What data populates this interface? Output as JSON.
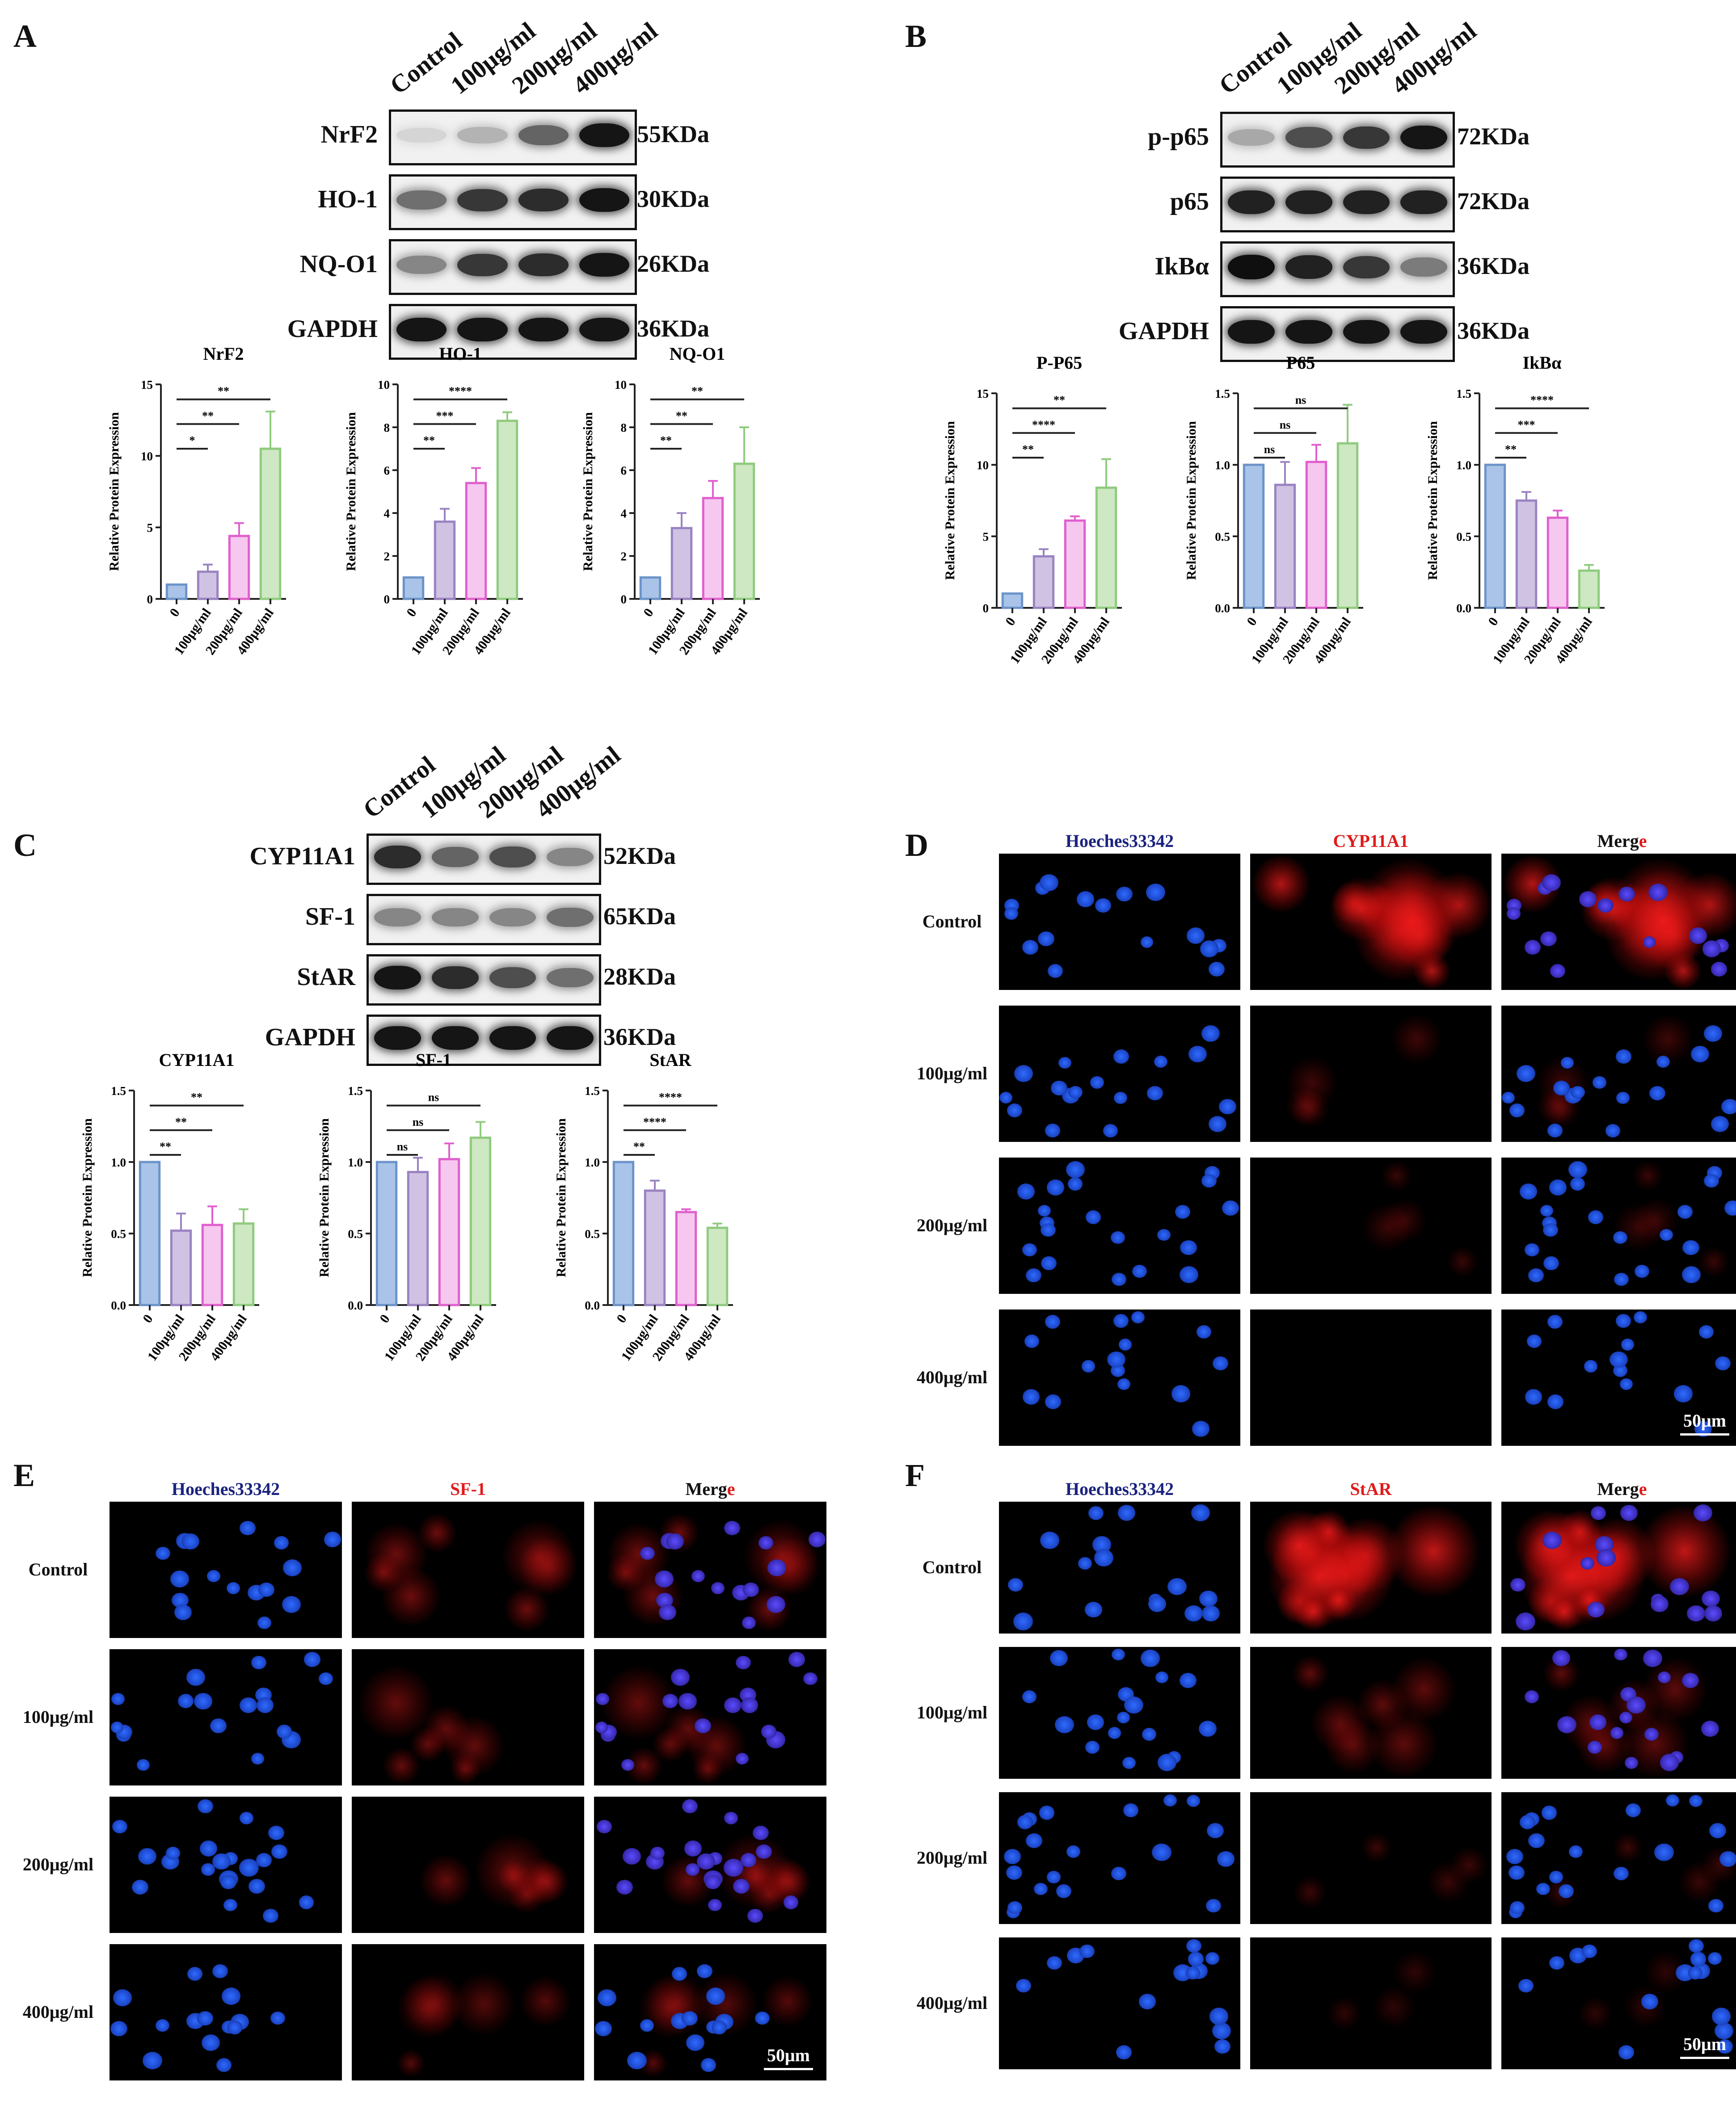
{
  "panels": {
    "A": {
      "letter": "A",
      "lanes": [
        "Control",
        "100μg/ml",
        "200μg/ml",
        "400μg/ml"
      ],
      "blots": [
        {
          "protein": "NrF2",
          "kda": "55KDa",
          "intensity": [
            0.1,
            0.25,
            0.6,
            0.95
          ]
        },
        {
          "protein": "HO-1",
          "kda": "30KDa",
          "intensity": [
            0.55,
            0.8,
            0.85,
            0.95
          ]
        },
        {
          "protein": "NQ-O1",
          "kda": "26KDa",
          "intensity": [
            0.45,
            0.8,
            0.85,
            0.95
          ]
        },
        {
          "protein": "GAPDH",
          "kda": "36KDa",
          "intensity": [
            0.95,
            0.95,
            0.95,
            0.95
          ]
        }
      ]
    },
    "B": {
      "letter": "B",
      "lanes": [
        "Control",
        "100μg/ml",
        "200μg/ml",
        "400μg/ml"
      ],
      "blots": [
        {
          "protein": "p-p65",
          "kda": "72KDa",
          "intensity": [
            0.3,
            0.7,
            0.8,
            0.95
          ]
        },
        {
          "protein": "p65",
          "kda": "72KDa",
          "intensity": [
            0.9,
            0.9,
            0.9,
            0.9
          ]
        },
        {
          "protein": "IkBα",
          "kda": "36KDa",
          "intensity": [
            0.98,
            0.9,
            0.8,
            0.5
          ]
        },
        {
          "protein": "GAPDH",
          "kda": "36KDa",
          "intensity": [
            0.95,
            0.95,
            0.95,
            0.95
          ]
        }
      ]
    },
    "C": {
      "letter": "C",
      "lanes": [
        "Control",
        "100μg/ml",
        "200μg/ml",
        "400μg/ml"
      ],
      "blots": [
        {
          "protein": "CYP11A1",
          "kda": "52KDa",
          "intensity": [
            0.85,
            0.6,
            0.7,
            0.45
          ]
        },
        {
          "protein": "SF-1",
          "kda": "65KDa",
          "intensity": [
            0.45,
            0.45,
            0.45,
            0.55
          ]
        },
        {
          "protein": "StAR",
          "kda": "28KDa",
          "intensity": [
            0.95,
            0.85,
            0.7,
            0.55
          ]
        },
        {
          "protein": "GAPDH",
          "kda": "36KDa",
          "intensity": [
            0.95,
            0.95,
            0.95,
            0.95
          ]
        }
      ]
    },
    "D": {
      "letter": "D",
      "channels": [
        "Hoeches33342",
        "CYP11A1",
        "Merge"
      ],
      "red_level": [
        0.9,
        0.15,
        0.1,
        0.0
      ]
    },
    "E": {
      "letter": "E",
      "channels": [
        "Hoeches33342",
        "SF-1",
        "Merge"
      ],
      "red_level": [
        0.45,
        0.4,
        0.4,
        0.3
      ]
    },
    "F": {
      "letter": "F",
      "channels": [
        "Hoeches33342",
        "StAR",
        "Merge"
      ],
      "red_level": [
        1.0,
        0.35,
        0.12,
        0.05
      ]
    }
  },
  "merge_label": {
    "prefix": "Merg",
    "suffix": "e"
  },
  "doses": [
    "Control",
    "100μg/ml",
    "200μg/ml",
    "400μg/ml"
  ],
  "scale_bar": "50μm",
  "colors": {
    "blue_bar": "#a9c4e8",
    "blue_edge": "#6b93c9",
    "purple_bar": "#cfc2e3",
    "purple_edge": "#9a82c2",
    "pink_bar": "#f6c8ef",
    "pink_edge": "#e05fce",
    "green_bar": "#cde8c3",
    "green_edge": "#8fcb7e",
    "hoechst_label": "#1a237e",
    "red_label": "#e01b1b"
  },
  "chart_data": [
    {
      "type": "bar",
      "title": "NrF2",
      "ylabel": "Relative Protein Expression",
      "categories": [
        "0",
        "100μg/ml",
        "200μg/ml",
        "400μg/ml"
      ],
      "values": [
        1.0,
        1.9,
        4.4,
        10.5
      ],
      "errors": [
        0,
        0.5,
        0.9,
        2.6
      ],
      "ylim": [
        0,
        15
      ],
      "yticks": [
        0,
        5,
        10,
        15
      ],
      "brackets": [
        {
          "to": 1,
          "label": "*"
        },
        {
          "to": 2,
          "label": "**"
        },
        {
          "to": 3,
          "label": "**"
        }
      ]
    },
    {
      "type": "bar",
      "title": "HO-1",
      "ylabel": "Relative Protein Expression",
      "categories": [
        "0",
        "100μg/ml",
        "200μg/ml",
        "400μg/ml"
      ],
      "values": [
        1.0,
        3.6,
        5.4,
        8.3
      ],
      "errors": [
        0,
        0.6,
        0.7,
        0.4
      ],
      "ylim": [
        0,
        10
      ],
      "yticks": [
        0,
        2,
        4,
        6,
        8,
        10
      ],
      "brackets": [
        {
          "to": 1,
          "label": "**"
        },
        {
          "to": 2,
          "label": "***"
        },
        {
          "to": 3,
          "label": "****"
        }
      ]
    },
    {
      "type": "bar",
      "title": "NQ-O1",
      "ylabel": "Relative Protein Expression",
      "categories": [
        "0",
        "100μg/ml",
        "200μg/ml",
        "400μg/ml"
      ],
      "values": [
        1.0,
        3.3,
        4.7,
        6.3
      ],
      "errors": [
        0,
        0.7,
        0.8,
        1.7
      ],
      "ylim": [
        0,
        10
      ],
      "yticks": [
        0,
        2,
        4,
        6,
        8,
        10
      ],
      "brackets": [
        {
          "to": 1,
          "label": "**"
        },
        {
          "to": 2,
          "label": "**"
        },
        {
          "to": 3,
          "label": "**"
        }
      ]
    },
    {
      "type": "bar",
      "title": "P-P65",
      "ylabel": "Relative Protein Expression",
      "categories": [
        "0",
        "100μg/ml",
        "200μg/ml",
        "400μg/ml"
      ],
      "values": [
        1.0,
        3.6,
        6.1,
        8.4
      ],
      "errors": [
        0,
        0.5,
        0.3,
        2.0
      ],
      "ylim": [
        0,
        15
      ],
      "yticks": [
        0,
        5,
        10,
        15
      ],
      "brackets": [
        {
          "to": 1,
          "label": "**"
        },
        {
          "to": 2,
          "label": "****"
        },
        {
          "to": 3,
          "label": "**"
        }
      ]
    },
    {
      "type": "bar",
      "title": "P65",
      "ylabel": "Relative Protein Expression",
      "categories": [
        "0",
        "100μg/ml",
        "200μg/ml",
        "400μg/ml"
      ],
      "values": [
        1.0,
        0.86,
        1.02,
        1.15
      ],
      "errors": [
        0,
        0.16,
        0.12,
        0.27
      ],
      "ylim": [
        0,
        1.5
      ],
      "yticks": [
        0.0,
        0.5,
        1.0,
        1.5
      ],
      "brackets": [
        {
          "to": 1,
          "label": "ns"
        },
        {
          "to": 2,
          "label": "ns"
        },
        {
          "to": 3,
          "label": "ns"
        }
      ]
    },
    {
      "type": "bar",
      "title": "IkBα",
      "ylabel": "Relative Protein Expression",
      "categories": [
        "0",
        "100μg/ml",
        "200μg/ml",
        "400μg/ml"
      ],
      "values": [
        1.0,
        0.75,
        0.63,
        0.26
      ],
      "errors": [
        0,
        0.06,
        0.05,
        0.04
      ],
      "ylim": [
        0,
        1.5
      ],
      "yticks": [
        0.0,
        0.5,
        1.0,
        1.5
      ],
      "brackets": [
        {
          "to": 1,
          "label": "**"
        },
        {
          "to": 2,
          "label": "***"
        },
        {
          "to": 3,
          "label": "****"
        }
      ]
    },
    {
      "type": "bar",
      "title": "CYP11A1",
      "ylabel": "Relative Protein Expression",
      "categories": [
        "0",
        "100μg/ml",
        "200μg/ml",
        "400μg/ml"
      ],
      "values": [
        1.0,
        0.52,
        0.56,
        0.57
      ],
      "errors": [
        0,
        0.12,
        0.13,
        0.1
      ],
      "ylim": [
        0,
        1.5
      ],
      "yticks": [
        0.0,
        0.5,
        1.0,
        1.5
      ],
      "brackets": [
        {
          "to": 1,
          "label": "**"
        },
        {
          "to": 2,
          "label": "**"
        },
        {
          "to": 3,
          "label": "**"
        }
      ]
    },
    {
      "type": "bar",
      "title": "SF-1",
      "ylabel": "Relative Protein Expression",
      "categories": [
        "0",
        "100μg/ml",
        "200μg/ml",
        "400μg/ml"
      ],
      "values": [
        1.0,
        0.93,
        1.02,
        1.17
      ],
      "errors": [
        0,
        0.1,
        0.11,
        0.11
      ],
      "ylim": [
        0,
        1.5
      ],
      "yticks": [
        0.0,
        0.5,
        1.0,
        1.5
      ],
      "brackets": [
        {
          "to": 1,
          "label": "ns"
        },
        {
          "to": 2,
          "label": "ns"
        },
        {
          "to": 3,
          "label": "ns"
        }
      ]
    },
    {
      "type": "bar",
      "title": "StAR",
      "ylabel": "Relative Protein Expression",
      "categories": [
        "0",
        "100μg/ml",
        "200μg/ml",
        "400μg/ml"
      ],
      "values": [
        1.0,
        0.8,
        0.65,
        0.54
      ],
      "errors": [
        0,
        0.07,
        0.02,
        0.03
      ],
      "ylim": [
        0,
        1.5
      ],
      "yticks": [
        0.0,
        0.5,
        1.0,
        1.5
      ],
      "brackets": [
        {
          "to": 1,
          "label": "**"
        },
        {
          "to": 2,
          "label": "****"
        },
        {
          "to": 3,
          "label": "****"
        }
      ]
    }
  ]
}
